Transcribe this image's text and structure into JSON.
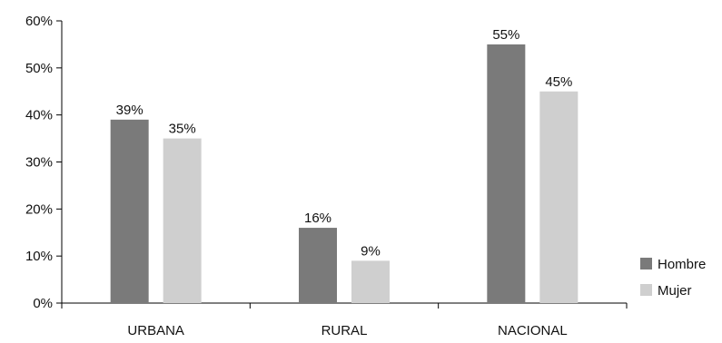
{
  "chart_data": {
    "type": "bar",
    "categories": [
      "URBANA",
      "RURAL",
      "NACIONAL"
    ],
    "series": [
      {
        "name": "Hombre",
        "values": [
          39,
          16,
          55
        ],
        "labels": [
          "39%",
          "16%",
          "55%"
        ],
        "color": "#7a7a7a"
      },
      {
        "name": "Mujer",
        "values": [
          35,
          9,
          45
        ],
        "labels": [
          "35%",
          "9%",
          "45%"
        ],
        "color": "#cfcfcf"
      }
    ],
    "ylim": [
      0,
      60
    ],
    "yticks": [
      0,
      10,
      20,
      30,
      40,
      50,
      60
    ],
    "ytick_labels": [
      "0%",
      "10%",
      "20%",
      "30%",
      "40%",
      "50%",
      "60%"
    ],
    "grid": false,
    "legend_position": "bottom-right",
    "title": "",
    "xlabel": "",
    "ylabel": ""
  }
}
